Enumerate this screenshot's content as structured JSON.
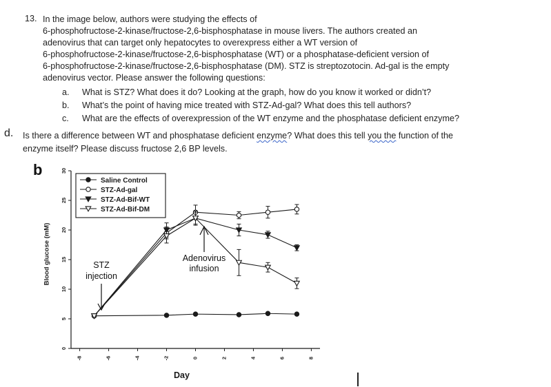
{
  "question": {
    "number": "13.",
    "lines": [
      "In the image below, authors were studying the effects of",
      "6-phosphofructose-2-kinase/fructose-2,6-bisphosphatase in mouse livers. The authors created an",
      "adenovirus that can target only hepatocytes to overexpress either a WT version of",
      "6-phosphofructose-2-kinase/fructose-2,6-bisphosphatase (WT) or a phosphatase-deficient version of",
      "6-phosphofructose-2-kinase/fructose-2,6-bisphosphatase (DM). STZ is streptozotocin. Ad-gal is the empty",
      "adenovirus vector. Please answer the following questions:"
    ],
    "subquestions": [
      {
        "letter": "a.",
        "text": "What is STZ? What does it do? Looking at the graph, how do you know it worked or didn’t?"
      },
      {
        "letter": "b.",
        "text": "What’s the point of having mice treated with STZ-Ad-gal? What does this tell authors?"
      },
      {
        "letter": "c.",
        "text": "What are the effects of overexpression of the WT enzyme and the phosphatase deficient enzyme?"
      }
    ],
    "d": {
      "letter": "d.",
      "line1_a": "Is there a difference between WT and phosphatase deficient ",
      "line1_b": "enzyme",
      "line1_c": "? What does this tell ",
      "line1_d": "you the",
      "line1_e": " function of the",
      "line2": "enzyme itself? Please discuss fructose 2,6 BP levels."
    }
  },
  "figure": {
    "panel_label": "b",
    "annotations": {
      "stz": [
        "STZ",
        "injection"
      ],
      "adeno": [
        "Adenovirus",
        "infusion"
      ]
    },
    "colors": {
      "line": "#1a1a1a",
      "open_fill": "#ffffff"
    }
  },
  "chart_data": {
    "type": "line",
    "title": "",
    "xlabel": "Day",
    "ylabel": "Blood glucose (mM)",
    "xlim": [
      -8.6,
      8.6
    ],
    "ylim": [
      0,
      30
    ],
    "xticks": [
      -8,
      -6,
      -4,
      -2,
      0,
      2,
      4,
      6,
      8
    ],
    "yticks": [
      0,
      5,
      10,
      15,
      20,
      25,
      30
    ],
    "grid": false,
    "legend_position": "top-left",
    "series": [
      {
        "name": "Saline Control",
        "marker": "filled-circle",
        "x": [
          -7,
          -2,
          0,
          3,
          5,
          7
        ],
        "y": [
          5.5,
          5.6,
          5.8,
          5.7,
          5.9,
          5.8
        ],
        "err": [
          0,
          0,
          0,
          0,
          0,
          0
        ]
      },
      {
        "name": "STZ-Ad-gal",
        "marker": "open-circle",
        "x": [
          -7,
          -2,
          0,
          3,
          5,
          7
        ],
        "y": [
          5.5,
          19.5,
          23.0,
          22.5,
          23.0,
          23.5
        ],
        "err": [
          0,
          1.0,
          1.2,
          0.6,
          1.0,
          0.8
        ]
      },
      {
        "name": "STZ-Ad-Bif-WT",
        "marker": "filled-triangle",
        "x": [
          -7,
          -2,
          0,
          3,
          5,
          7
        ],
        "y": [
          5.5,
          20.0,
          22.0,
          20.0,
          19.2,
          17.0
        ],
        "err": [
          0,
          1.2,
          1.0,
          1.0,
          0.6,
          0.5
        ]
      },
      {
        "name": "STZ-Ad-Bif-DM",
        "marker": "open-triangle",
        "x": [
          -7,
          -2,
          0,
          3,
          5,
          7
        ],
        "y": [
          5.5,
          19.0,
          22.0,
          14.5,
          13.7,
          11.0
        ],
        "err": [
          0,
          1.2,
          1.2,
          2.2,
          0.8,
          0.9
        ]
      }
    ]
  }
}
